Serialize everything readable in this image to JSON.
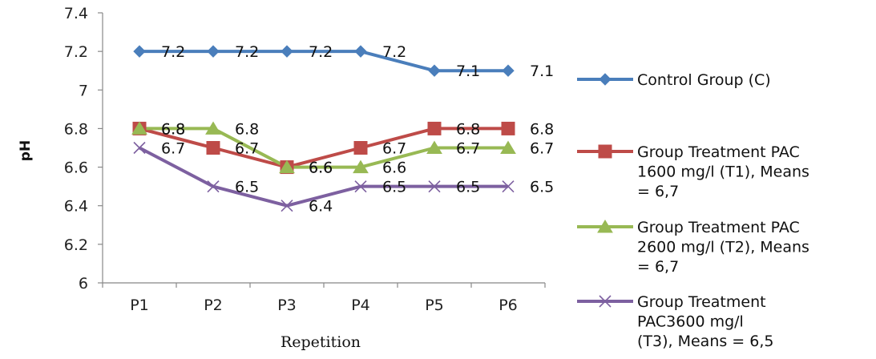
{
  "chart_data": {
    "type": "line",
    "categories": [
      "P1",
      "P2",
      "P3",
      "P4",
      "P5",
      "P6"
    ],
    "xlabel": "Repetition",
    "ylabel": "pH",
    "ylim": [
      6,
      7.4
    ],
    "yticks": [
      "6",
      "6.2",
      "6.4",
      "6.6",
      "6.8",
      "7",
      "7.2",
      "7.4"
    ],
    "grid": false,
    "legend_position": "right",
    "series": [
      {
        "name": "Control Group (C)",
        "legend_lines": [
          "Control Group (C)"
        ],
        "values": [
          7.2,
          7.2,
          7.2,
          7.2,
          7.1,
          7.1
        ],
        "labels": [
          "7.2",
          "7.2",
          "7.2",
          "7.2",
          "7.1",
          "7.1"
        ],
        "color": "#4a7ebb",
        "marker": "diamond"
      },
      {
        "name": "Group Treatment PAC 1600 mg/l (T1), Means = 6,7",
        "legend_lines": [
          "Group Treatment PAC",
          "1600 mg/l (T1), Means",
          "= 6,7"
        ],
        "values": [
          6.8,
          6.7,
          6.6,
          6.7,
          6.8,
          6.8
        ],
        "labels": [
          "6.8",
          "6.7",
          "6.6",
          "6.7",
          "6.8",
          "6.8"
        ],
        "color": "#be4b48",
        "marker": "square"
      },
      {
        "name": "Group Treatment PAC 2600 mg/l (T2), Means = 6,7",
        "legend_lines": [
          "Group Treatment PAC",
          "2600 mg/l (T2), Means",
          "= 6,7"
        ],
        "values": [
          6.8,
          6.8,
          6.6,
          6.6,
          6.7,
          6.7
        ],
        "labels": [
          "6.8",
          "6.8",
          "6.6",
          "6.6",
          "6.7",
          "6.7"
        ],
        "color": "#98b954",
        "marker": "triangle"
      },
      {
        "name": "Group Treatment PAC3600 mg/l (T3), Means = 6,5",
        "legend_lines": [
          "Group Treatment",
          "PAC3600 mg/l",
          "(T3), Means = 6,5"
        ],
        "values": [
          6.7,
          6.5,
          6.4,
          6.5,
          6.5,
          6.5
        ],
        "labels": [
          "6.7",
          "6.5",
          "6.4",
          "6.5",
          "6.5",
          "6.5"
        ],
        "color": "#7d60a0",
        "marker": "x"
      }
    ]
  }
}
